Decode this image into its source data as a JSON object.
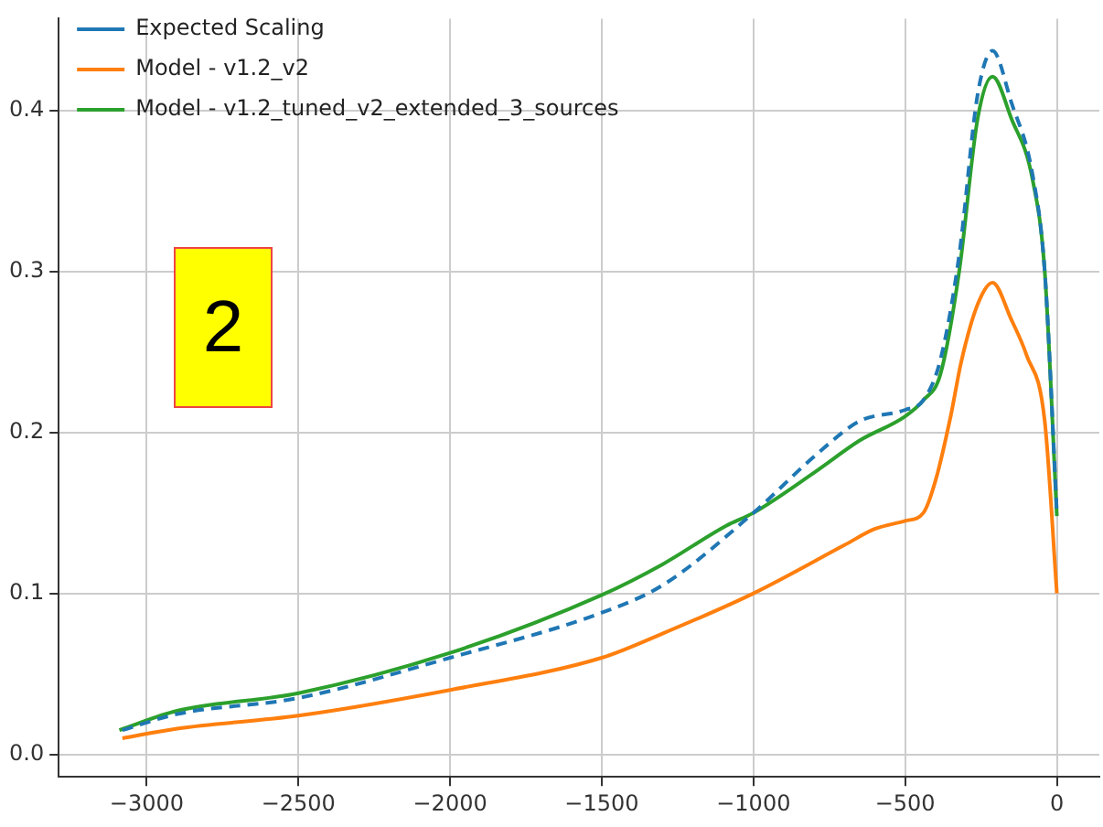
{
  "chart_data": {
    "type": "line",
    "legend": "top left",
    "grid": true,
    "xlim": [
      -3290,
      140
    ],
    "ylim": [
      -0.014,
      0.457
    ],
    "xticks": [
      {
        "value": -3000,
        "label": "−3000"
      },
      {
        "value": -2500,
        "label": "−2500"
      },
      {
        "value": -2000,
        "label": "−2000"
      },
      {
        "value": -1500,
        "label": "−1500"
      },
      {
        "value": -1000,
        "label": "−1000"
      },
      {
        "value": -500,
        "label": "−500"
      },
      0
    ],
    "yticks": [
      {
        "value": 0,
        "label": "0.0"
      },
      0.1,
      0.2,
      0.3,
      0.4
    ],
    "annotations": [
      "2"
    ],
    "series": [
      {
        "name": "Expected Scaling",
        "color": "#1f77b4",
        "line_style": "dashed",
        "x": [
          -3080,
          -2900,
          -2500,
          -2000,
          -1500,
          -1300,
          -1000,
          -800,
          -650,
          -500,
          -440,
          -384,
          -322,
          -261,
          -212,
          -150,
          -80,
          -40,
          0
        ],
        "values": [
          0.015,
          0.025,
          0.035,
          0.06,
          0.088,
          0.105,
          0.15,
          0.185,
          0.207,
          0.214,
          0.22,
          0.245,
          0.31,
          0.41,
          0.437,
          0.405,
          0.36,
          0.3,
          0.15
        ]
      },
      {
        "name": "Model - v1.2_v2",
        "color": "#ff7f0e",
        "line_style": "solid",
        "x": [
          -3080,
          -2900,
          -2500,
          -2000,
          -1500,
          -1300,
          -1000,
          -700,
          -600,
          -500,
          -440,
          -400,
          -350,
          -315,
          -260,
          -212,
          -150,
          -100,
          -40,
          0
        ],
        "values": [
          0.01,
          0.016,
          0.024,
          0.04,
          0.06,
          0.075,
          0.1,
          0.13,
          0.14,
          0.145,
          0.15,
          0.17,
          0.21,
          0.244,
          0.28,
          0.293,
          0.27,
          0.248,
          0.207,
          0.1
        ]
      },
      {
        "name": "Model - v1.2_tuned_v2_extended_3_sources",
        "color": "#2ca02c",
        "line_style": "solid",
        "x": [
          -3090,
          -2900,
          -2500,
          -2000,
          -1500,
          -1300,
          -1090,
          -1000,
          -800,
          -650,
          -500,
          -440,
          -384,
          -322,
          -261,
          -212,
          -150,
          -80,
          -40,
          0
        ],
        "values": [
          0.015,
          0.027,
          0.038,
          0.063,
          0.099,
          0.118,
          0.142,
          0.15,
          0.175,
          0.195,
          0.21,
          0.22,
          0.236,
          0.3,
          0.395,
          0.421,
          0.395,
          0.357,
          0.3,
          0.148
        ]
      }
    ]
  }
}
